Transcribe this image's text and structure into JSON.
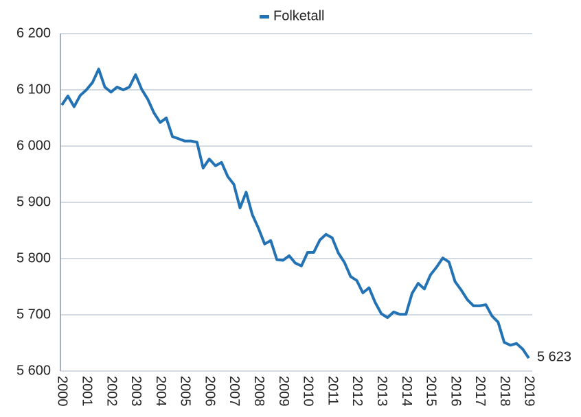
{
  "chart_data": {
    "type": "line",
    "categories": [
      "2000",
      null,
      null,
      null,
      "2001",
      null,
      null,
      null,
      "2002",
      null,
      null,
      null,
      "2003",
      null,
      null,
      null,
      "2004",
      null,
      null,
      null,
      "2005",
      null,
      null,
      null,
      "2006",
      null,
      null,
      null,
      "2007",
      null,
      null,
      null,
      "2008",
      null,
      null,
      null,
      "2009",
      null,
      null,
      null,
      "2010",
      null,
      null,
      null,
      "2011",
      null,
      null,
      null,
      "2012",
      null,
      null,
      null,
      "2013",
      null,
      null,
      null,
      "2014",
      null,
      null,
      null,
      "2015",
      null,
      null,
      null,
      "2016",
      null,
      null,
      null,
      "2017",
      null,
      null,
      null,
      "2018",
      null,
      null,
      null,
      "2019"
    ],
    "series": [
      {
        "name": "Folketall",
        "color": "#2272b4",
        "values": [
          6073,
          6089,
          6070,
          6090,
          6100,
          6113,
          6137,
          6105,
          6096,
          6105,
          6100,
          6105,
          6127,
          6101,
          6083,
          6059,
          6042,
          6050,
          6017,
          6013,
          6009,
          6009,
          6007,
          5961,
          5977,
          5965,
          5971,
          5946,
          5932,
          5890,
          5918,
          5878,
          5854,
          5826,
          5832,
          5798,
          5797,
          5805,
          5792,
          5787,
          5811,
          5811,
          5833,
          5843,
          5837,
          5810,
          5793,
          5768,
          5761,
          5739,
          5748,
          5722,
          5702,
          5695,
          5705,
          5701,
          5701,
          5738,
          5756,
          5746,
          5771,
          5785,
          5801,
          5794,
          5759,
          5744,
          5727,
          5716,
          5716,
          5718,
          5698,
          5687,
          5651,
          5646,
          5649,
          5639,
          5623
        ],
        "value_labels": [
          null,
          null,
          null,
          null,
          null,
          null,
          null,
          null,
          null,
          null,
          null,
          null,
          null,
          null,
          null,
          null,
          null,
          null,
          null,
          null,
          null,
          null,
          null,
          null,
          null,
          null,
          null,
          null,
          null,
          null,
          null,
          null,
          null,
          null,
          null,
          null,
          null,
          null,
          null,
          null,
          null,
          null,
          null,
          null,
          null,
          null,
          null,
          null,
          null,
          null,
          null,
          null,
          null,
          null,
          null,
          null,
          null,
          null,
          null,
          null,
          null,
          null,
          null,
          null,
          null,
          null,
          null,
          null,
          null,
          null,
          null,
          null,
          null,
          null,
          null,
          null,
          "5 623"
        ]
      }
    ],
    "ylim": [
      5600,
      6200
    ],
    "yticks": [
      {
        "value": 5600,
        "label": "5 600"
      },
      {
        "value": 5700,
        "label": "5 700"
      },
      {
        "value": 5800,
        "label": "5 800"
      },
      {
        "value": 5900,
        "label": "5 900"
      },
      {
        "value": 6000,
        "label": "6 000"
      },
      {
        "value": 6100,
        "label": "6 100"
      },
      {
        "value": 6200,
        "label": "6 200"
      }
    ],
    "grid": true,
    "legend": "top"
  }
}
